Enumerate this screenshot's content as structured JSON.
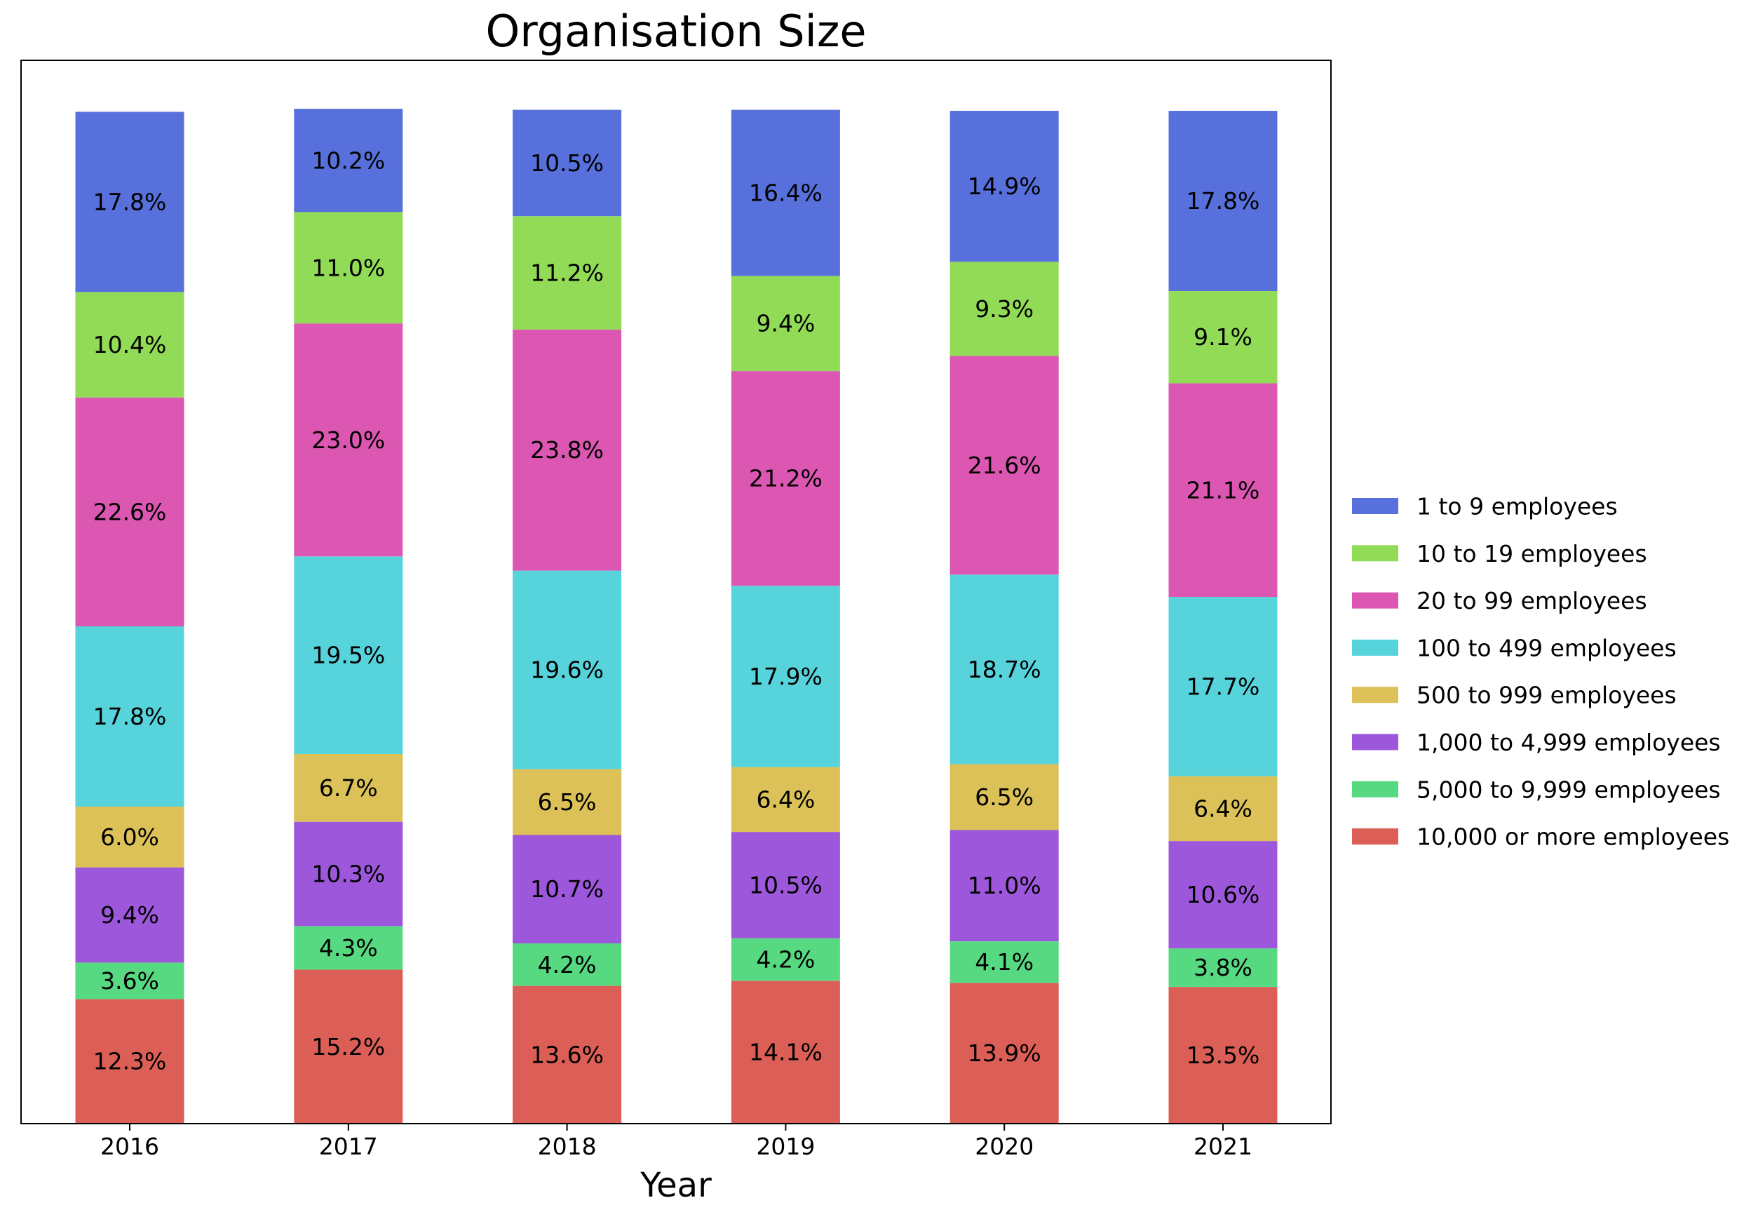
{
  "chart_data": {
    "type": "bar",
    "stacked": true,
    "title": "Organisation Size",
    "xlabel": "Year",
    "ylabel": "",
    "ylim": [
      0,
      100
    ],
    "categories": [
      "2016",
      "2017",
      "2018",
      "2019",
      "2020",
      "2021"
    ],
    "legend_position": "center-right",
    "series": [
      {
        "name": "10,000 or more employees",
        "color": "#db5f57",
        "values": [
          12.3,
          15.2,
          13.6,
          14.1,
          13.9,
          13.5
        ]
      },
      {
        "name": "5,000 to 9,999 employees",
        "color": "#57d982",
        "values": [
          3.6,
          4.3,
          4.2,
          4.2,
          4.1,
          3.8
        ]
      },
      {
        "name": "1,000 to 4,999 employees",
        "color": "#9d57db",
        "values": [
          9.4,
          10.3,
          10.7,
          10.5,
          11.0,
          10.6
        ]
      },
      {
        "name": "500 to 999 employees",
        "color": "#dbc157",
        "values": [
          6.0,
          6.7,
          6.5,
          6.4,
          6.5,
          6.4
        ]
      },
      {
        "name": "100 to 499 employees",
        "color": "#57d3db",
        "values": [
          17.8,
          19.5,
          19.6,
          17.9,
          18.7,
          17.7
        ]
      },
      {
        "name": "20 to 99 employees",
        "color": "#db57b2",
        "values": [
          22.6,
          23.0,
          23.8,
          21.2,
          21.6,
          21.1
        ]
      },
      {
        "name": "10 to 19 employees",
        "color": "#91db57",
        "values": [
          10.4,
          11.0,
          11.2,
          9.4,
          9.3,
          9.1
        ]
      },
      {
        "name": "1 to 9 employees",
        "color": "#5770db",
        "values": [
          17.8,
          10.2,
          10.5,
          16.4,
          14.9,
          17.8
        ]
      }
    ],
    "legend_order": [
      "1 to 9 employees",
      "10 to 19 employees",
      "20 to 99 employees",
      "100 to 499 employees",
      "500 to 999 employees",
      "1,000 to 4,999 employees",
      "5,000 to 9,999 employees",
      "10,000 or more employees"
    ]
  }
}
